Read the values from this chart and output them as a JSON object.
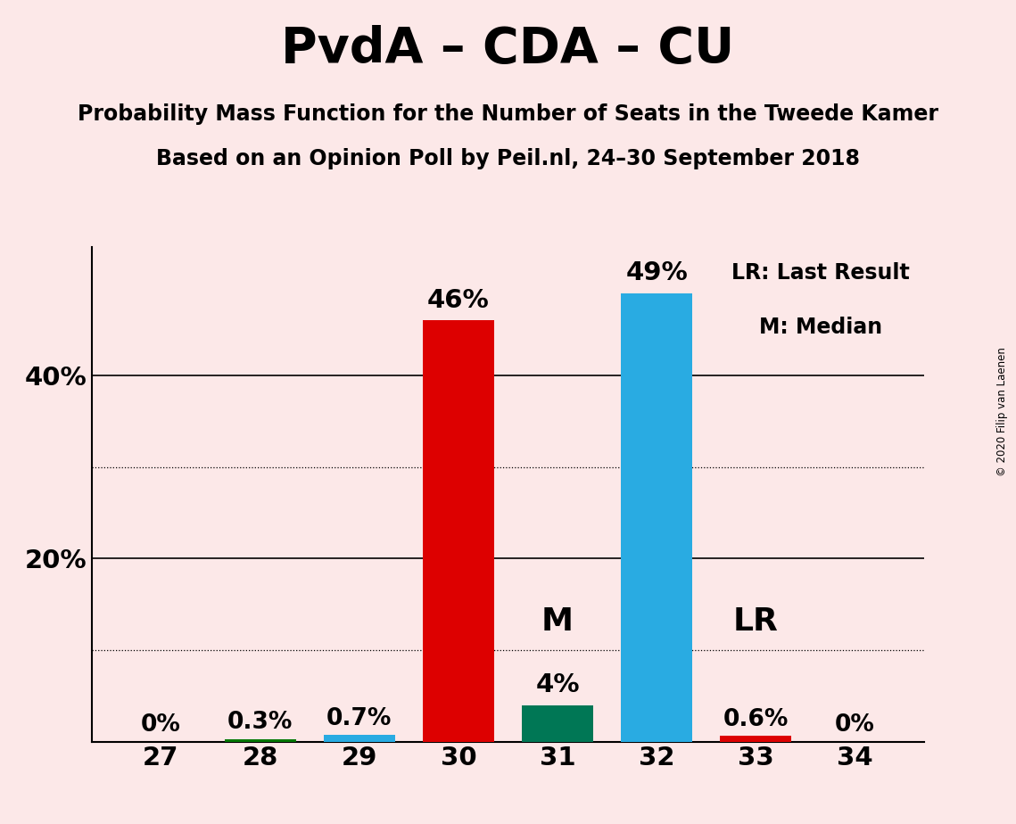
{
  "title": "PvdA – CDA – CU",
  "subtitle1": "Probability Mass Function for the Number of Seats in the Tweede Kamer",
  "subtitle2": "Based on an Opinion Poll by Peil.nl, 24–30 September 2018",
  "copyright": "© 2020 Filip van Laenen",
  "categories": [
    27,
    28,
    29,
    30,
    31,
    32,
    33,
    34
  ],
  "values": [
    0.0,
    0.3,
    0.7,
    46.0,
    4.0,
    49.0,
    0.6,
    0.0
  ],
  "labels": [
    "0%",
    "0.3%",
    "0.7%",
    "46%",
    "4%",
    "49%",
    "0.6%",
    "0%"
  ],
  "colors": [
    "#dd0000",
    "#007700",
    "#29abe2",
    "#dd0000",
    "#007755",
    "#29abe2",
    "#dd0000",
    "#dd0000"
  ],
  "background_color": "#fce8e8",
  "ylim": [
    0,
    54
  ],
  "solid_grid_lines": [
    20,
    40
  ],
  "dotted_grid_lines": [
    10,
    30
  ],
  "median_seat": 31,
  "lr_seat": 33,
  "legend_text1": "LR: Last Result",
  "legend_text2": "M: Median",
  "bar_width": 0.72,
  "title_fontsize": 40,
  "subtitle_fontsize": 17,
  "label_fontsize": 21,
  "tick_fontsize": 21,
  "legend_fontsize": 17,
  "annotation_fontsize": 22
}
